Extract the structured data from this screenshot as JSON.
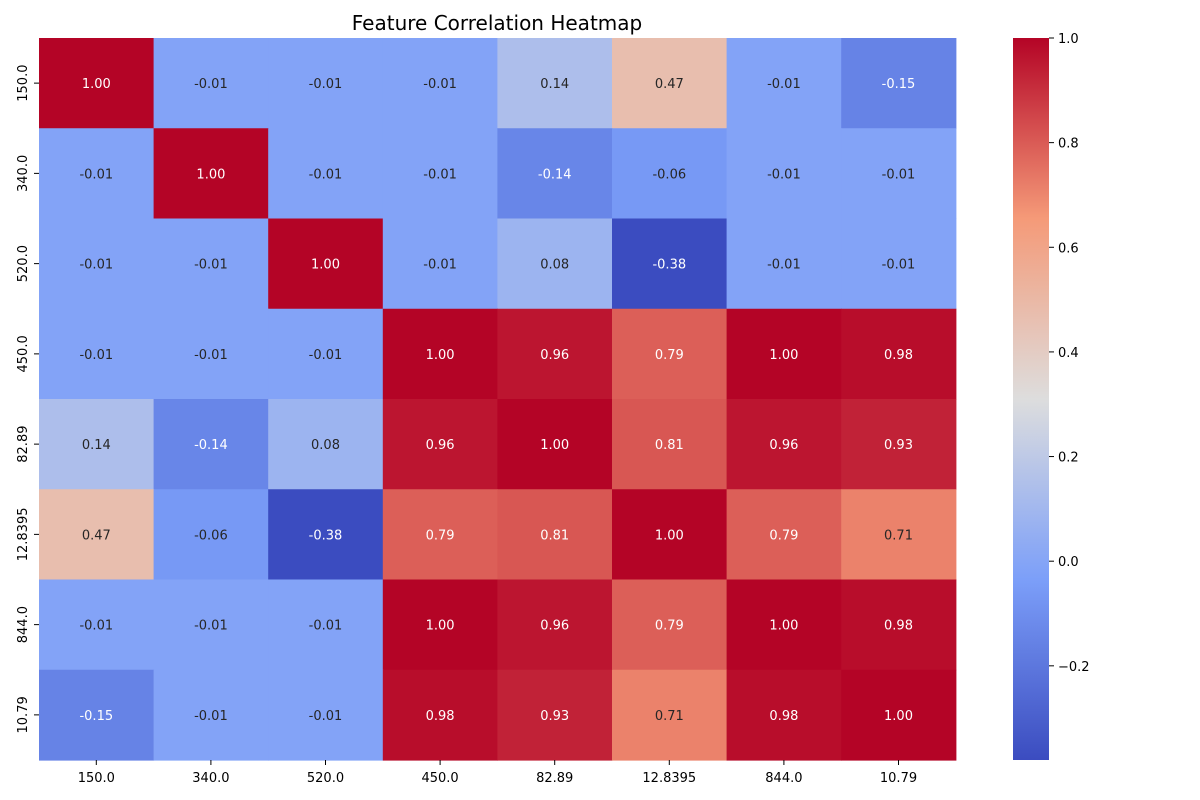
{
  "chart_data": {
    "type": "heatmap",
    "title": "Feature Correlation Heatmap",
    "xlabel": "",
    "ylabel": "",
    "categories_x": [
      "150.0",
      "340.0",
      "520.0",
      "450.0",
      "82.89",
      "12.8395",
      "844.0",
      "10.79"
    ],
    "categories_y": [
      "150.0",
      "340.0",
      "520.0",
      "450.0",
      "82.89",
      "12.8395",
      "844.0",
      "10.79"
    ],
    "values": [
      [
        1.0,
        -0.01,
        -0.01,
        -0.01,
        0.14,
        0.47,
        -0.01,
        -0.15
      ],
      [
        -0.01,
        1.0,
        -0.01,
        -0.01,
        -0.14,
        -0.06,
        -0.01,
        -0.01
      ],
      [
        -0.01,
        -0.01,
        1.0,
        -0.01,
        0.08,
        -0.38,
        -0.01,
        -0.01
      ],
      [
        -0.01,
        -0.01,
        -0.01,
        1.0,
        0.96,
        0.79,
        1.0,
        0.98
      ],
      [
        0.14,
        -0.14,
        0.08,
        0.96,
        1.0,
        0.81,
        0.96,
        0.93
      ],
      [
        0.47,
        -0.06,
        -0.38,
        0.79,
        0.81,
        1.0,
        0.79,
        0.71
      ],
      [
        -0.01,
        -0.01,
        -0.01,
        1.0,
        0.96,
        0.79,
        1.0,
        0.98
      ],
      [
        -0.15,
        -0.01,
        -0.01,
        0.98,
        0.93,
        0.71,
        0.98,
        1.0
      ]
    ],
    "value_format": "2 decimals",
    "colormap": "coolwarm",
    "color_min": -0.38,
    "color_max": 1.0,
    "colorbar_ticks": [
      1.0,
      0.8,
      0.6,
      0.4,
      0.2,
      0.0,
      -0.2
    ],
    "colorbar_tick_labels": [
      "1.0",
      "0.8",
      "0.6",
      "0.4",
      "0.2",
      "0.0",
      "−0.2"
    ],
    "colorbar_position": "right",
    "grid": false
  }
}
